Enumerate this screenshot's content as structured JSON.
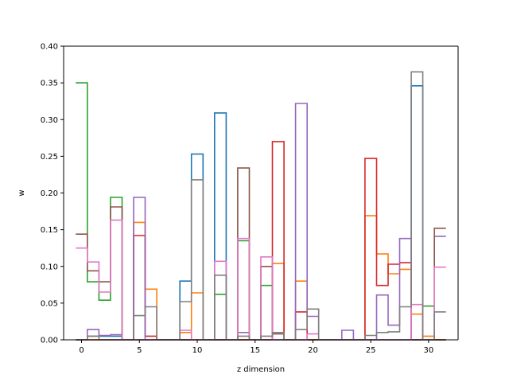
{
  "chart_data": {
    "type": "step",
    "xlabel": "z dimension",
    "ylabel": "w",
    "xlim": [
      -1.55,
      32.55
    ],
    "ylim": [
      0,
      0.4
    ],
    "xticks": [
      0,
      5,
      10,
      15,
      20,
      25,
      30
    ],
    "yticks": [
      0.0,
      0.05,
      0.1,
      0.15,
      0.2,
      0.25,
      0.3,
      0.35,
      0.4
    ],
    "xtick_labels": [
      "0",
      "5",
      "10",
      "15",
      "20",
      "25",
      "30"
    ],
    "ytick_labels": [
      "0.00",
      "0.05",
      "0.10",
      "0.15",
      "0.20",
      "0.25",
      "0.30",
      "0.35",
      "0.40"
    ],
    "grid": false,
    "legend": "none",
    "bins": [
      0,
      1,
      2,
      3,
      4,
      5,
      6,
      7,
      8,
      9,
      10,
      11,
      12,
      13,
      14,
      15,
      16,
      17,
      18,
      19,
      20,
      21,
      22,
      23,
      24,
      25,
      26,
      27,
      28,
      29,
      30,
      31
    ],
    "series": [
      {
        "color": "#1f77b4",
        "values": [
          0.0,
          0.005,
          0.005,
          0.005,
          0.0,
          0.0,
          0.0,
          0.0,
          0.0,
          0.08,
          0.253,
          0.0,
          0.309,
          0.0,
          0.0,
          0.0,
          0.0,
          0.0,
          0.0,
          0.0,
          0.0,
          0.0,
          0.0,
          0.0,
          0.0,
          0.0,
          0.0,
          0.0,
          0.0,
          0.346,
          0.0,
          0.0
        ]
      },
      {
        "color": "#ff7f0e",
        "values": [
          0.0,
          0.0,
          0.0,
          0.0,
          0.0,
          0.16,
          0.069,
          0.0,
          0.0,
          0.01,
          0.064,
          0.0,
          0.0,
          0.0,
          0.0,
          0.0,
          0.0,
          0.104,
          0.0,
          0.08,
          0.0,
          0.0,
          0.0,
          0.0,
          0.0,
          0.169,
          0.117,
          0.09,
          0.096,
          0.035,
          0.005,
          0.0
        ]
      },
      {
        "color": "#2ca02c",
        "values": [
          0.35,
          0.079,
          0.054,
          0.194,
          0.0,
          0.0,
          0.0,
          0.0,
          0.0,
          0.0,
          0.0,
          0.0,
          0.062,
          0.0,
          0.135,
          0.0,
          0.074,
          0.0,
          0.0,
          0.0,
          0.0,
          0.0,
          0.0,
          0.0,
          0.0,
          0.0,
          0.0,
          0.0,
          0.0,
          0.0,
          0.046,
          0.0
        ]
      },
      {
        "color": "#d62728",
        "values": [
          0.0,
          0.0,
          0.0,
          0.0,
          0.0,
          0.142,
          0.005,
          0.0,
          0.0,
          0.0,
          0.0,
          0.0,
          0.0,
          0.0,
          0.0,
          0.0,
          0.0,
          0.27,
          0.0,
          0.038,
          0.0,
          0.0,
          0.0,
          0.0,
          0.0,
          0.247,
          0.074,
          0.103,
          0.105,
          0.0,
          0.0,
          0.0
        ]
      },
      {
        "color": "#9467bd",
        "values": [
          0.0,
          0.014,
          0.006,
          0.007,
          0.0,
          0.194,
          0.0,
          0.0,
          0.0,
          0.0,
          0.0,
          0.0,
          0.0,
          0.0,
          0.01,
          0.0,
          0.0,
          0.0,
          0.0,
          0.322,
          0.032,
          0.0,
          0.0,
          0.013,
          0.0,
          0.0,
          0.061,
          0.02,
          0.138,
          0.0,
          0.0,
          0.141
        ]
      },
      {
        "color": "#8c564b",
        "values": [
          0.144,
          0.094,
          0.079,
          0.181,
          0.0,
          0.0,
          0.0,
          0.0,
          0.0,
          0.0,
          0.0,
          0.0,
          0.0,
          0.0,
          0.234,
          0.0,
          0.1,
          0.008,
          0.0,
          0.0,
          0.0,
          0.0,
          0.0,
          0.0,
          0.0,
          0.0,
          0.0,
          0.0,
          0.0,
          0.0,
          0.0,
          0.152
        ]
      },
      {
        "color": "#e377c2",
        "values": [
          0.125,
          0.106,
          0.065,
          0.163,
          0.0,
          0.0,
          0.0,
          0.0,
          0.0,
          0.013,
          0.0,
          0.0,
          0.107,
          0.0,
          0.138,
          0.0,
          0.113,
          0.0,
          0.0,
          0.0,
          0.008,
          0.0,
          0.0,
          0.0,
          0.0,
          0.0,
          0.0,
          0.0,
          0.0,
          0.048,
          0.0,
          0.099
        ]
      },
      {
        "color": "#7f7f7f",
        "values": [
          0.0,
          0.005,
          0.0,
          0.0,
          0.0,
          0.033,
          0.045,
          0.0,
          0.0,
          0.052,
          0.218,
          0.0,
          0.088,
          0.0,
          0.005,
          0.0,
          0.005,
          0.01,
          0.0,
          0.014,
          0.042,
          0.0,
          0.0,
          0.0,
          0.0,
          0.006,
          0.01,
          0.011,
          0.045,
          0.365,
          0.0,
          0.038
        ]
      }
    ]
  }
}
